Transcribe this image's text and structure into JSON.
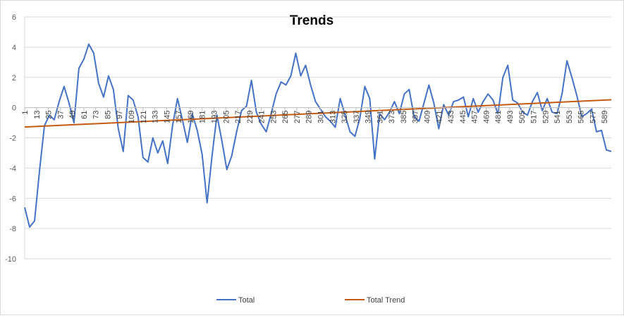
{
  "chart_data": {
    "type": "line",
    "title": "Trends",
    "xlabel": "",
    "ylabel": "",
    "ylim": [
      -10,
      6
    ],
    "y_ticks": [
      -10,
      -8,
      -6,
      -4,
      -2,
      0,
      2,
      4,
      6
    ],
    "x_range": [
      1,
      596
    ],
    "x_tick_labels": [
      "1",
      "13",
      "25",
      "37",
      "49",
      "61",
      "73",
      "85",
      "97",
      "109",
      "121",
      "133",
      "145",
      "157",
      "169",
      "181",
      "193",
      "205",
      "217",
      "229",
      "241",
      "253",
      "265",
      "277",
      "289",
      "301",
      "313",
      "325",
      "337",
      "349",
      "361",
      "373",
      "385",
      "397",
      "409",
      "421",
      "433",
      "445",
      "457",
      "469",
      "481",
      "493",
      "505",
      "517",
      "529",
      "541",
      "553",
      "565",
      "577",
      "589"
    ],
    "grid": "horizontal",
    "legend_position": "bottom",
    "series": [
      {
        "name": "Total",
        "color": "#4472c4",
        "x": [
          1,
          6,
          11,
          16,
          21,
          26,
          31,
          36,
          41,
          46,
          51,
          56,
          61,
          66,
          71,
          76,
          81,
          86,
          91,
          96,
          101,
          106,
          111,
          116,
          121,
          126,
          131,
          136,
          141,
          146,
          151,
          156,
          161,
          166,
          171,
          176,
          181,
          186,
          191,
          196,
          201,
          206,
          211,
          216,
          221,
          226,
          231,
          236,
          241,
          246,
          251,
          256,
          261,
          266,
          271,
          276,
          281,
          286,
          291,
          296,
          301,
          306,
          311,
          316,
          321,
          326,
          331,
          336,
          341,
          346,
          351,
          356,
          361,
          366,
          371,
          376,
          381,
          386,
          391,
          396,
          401,
          406,
          411,
          416,
          421,
          426,
          431,
          436,
          441,
          446,
          451,
          456,
          461,
          466,
          471,
          476,
          481,
          486,
          491,
          496,
          501,
          506,
          511,
          516,
          521,
          526,
          531,
          536,
          541,
          546,
          551,
          556,
          561,
          566,
          571,
          576,
          581,
          586,
          591,
          596
        ],
        "values": [
          -6.6,
          -7.9,
          -7.5,
          -4.2,
          -1.2,
          -0.5,
          -0.8,
          0.4,
          1.4,
          0.3,
          -1.0,
          2.6,
          3.2,
          4.2,
          3.6,
          1.6,
          0.7,
          2.1,
          1.2,
          -1.4,
          -2.9,
          0.8,
          0.5,
          -0.6,
          -3.3,
          -3.6,
          -2.0,
          -3.0,
          -2.2,
          -3.7,
          -1.2,
          0.6,
          -0.8,
          -2.3,
          -0.4,
          -1.5,
          -3.1,
          -6.3,
          -3.2,
          -0.5,
          -2.2,
          -4.1,
          -3.2,
          -1.6,
          -0.2,
          0.1,
          1.8,
          -0.3,
          -1.1,
          -1.6,
          -0.4,
          0.9,
          1.7,
          1.5,
          2.1,
          3.6,
          2.1,
          2.8,
          1.5,
          0.4,
          -0.1,
          -0.6,
          -0.9,
          -1.3,
          0.6,
          -0.5,
          -1.6,
          -1.9,
          -0.7,
          1.4,
          0.6,
          -3.4,
          -0.4,
          -0.8,
          -0.3,
          0.4,
          -0.4,
          0.9,
          1.2,
          -0.6,
          -0.9,
          0.3,
          1.5,
          0.3,
          -1.4,
          0.2,
          -0.5,
          0.4,
          0.5,
          0.7,
          -0.6,
          0.6,
          -0.3,
          0.4,
          0.9,
          0.5,
          -0.4,
          2.0,
          2.8,
          0.5,
          0.3,
          -0.3,
          -0.5,
          0.4,
          1.0,
          -0.2,
          0.6,
          -0.3,
          -0.4,
          0.9,
          3.1,
          2.0,
          0.8,
          -0.6,
          -0.4,
          -0.1,
          -1.6,
          -1.5,
          -2.8,
          -2.9
        ]
      },
      {
        "name": "Total Trend",
        "color": "#c55a11",
        "x": [
          1,
          596
        ],
        "values": [
          -1.28,
          0.52
        ]
      }
    ]
  }
}
